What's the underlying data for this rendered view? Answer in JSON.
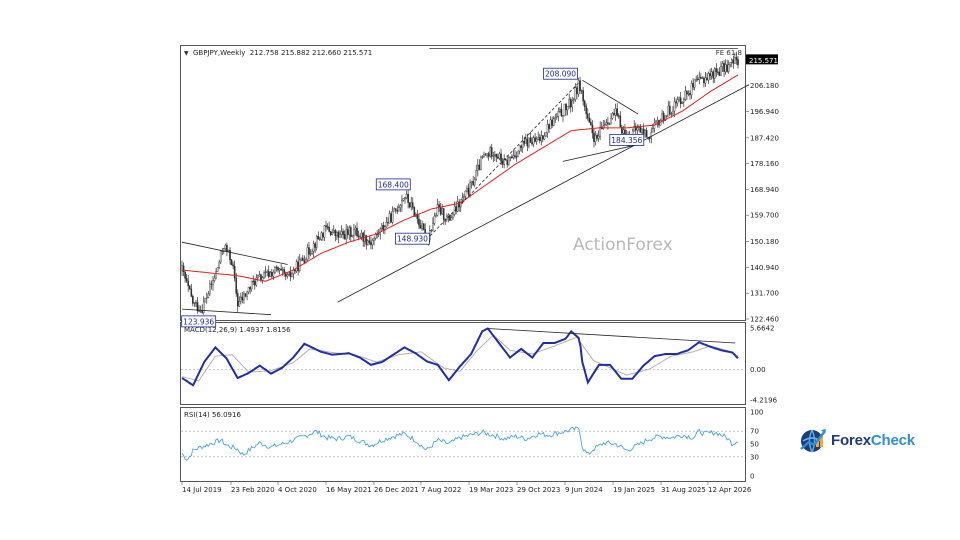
{
  "chart_data": [
    {
      "type": "candlestick",
      "symbol_header": "GBPJPY,Weekly  212.758 215.882 212.660 215.571",
      "current_price_label": "215.571",
      "fe_label": "FE 61.8",
      "watermark": "ActionForex",
      "ylim": [
        122.46,
        220.0
      ],
      "y_ticks": [
        "206.180",
        "196.940",
        "187.420",
        "178.160",
        "168.940",
        "159.700",
        "150.180",
        "140.940",
        "131.700",
        "122.460"
      ],
      "x_ticks": [
        "14 Jul 2019",
        "23 Feb 2020",
        "4 Oct 2020",
        "16 May 2021",
        "26 Dec 2021",
        "7 Aug 2022",
        "19 Mar 2023",
        "29 Oct 2023",
        "9 Jun 2024",
        "19 Jan 2025",
        "31 Aug 2025",
        "12 Apr 2026"
      ],
      "annotations": [
        {
          "label": "123.936",
          "t": 0.03,
          "price": 123.94
        },
        {
          "label": "168.400",
          "t": 0.38,
          "price": 168.4
        },
        {
          "label": "148.930",
          "t": 0.445,
          "price": 148.93
        },
        {
          "label": "208.090",
          "t": 0.715,
          "price": 208.09
        },
        {
          "label": "184.356",
          "t": 0.8,
          "price": 184.36
        }
      ],
      "price_path": [
        [
          0.0,
          140
        ],
        [
          0.02,
          128
        ],
        [
          0.035,
          126
        ],
        [
          0.06,
          138
        ],
        [
          0.075,
          149
        ],
        [
          0.09,
          143
        ],
        [
          0.1,
          128
        ],
        [
          0.11,
          130
        ],
        [
          0.13,
          136
        ],
        [
          0.15,
          138
        ],
        [
          0.17,
          140
        ],
        [
          0.19,
          137
        ],
        [
          0.21,
          142
        ],
        [
          0.24,
          150
        ],
        [
          0.26,
          155
        ],
        [
          0.28,
          152
        ],
        [
          0.31,
          154
        ],
        [
          0.34,
          150
        ],
        [
          0.36,
          155
        ],
        [
          0.38,
          160
        ],
        [
          0.4,
          167
        ],
        [
          0.42,
          160
        ],
        [
          0.44,
          151
        ],
        [
          0.46,
          162
        ],
        [
          0.48,
          158
        ],
        [
          0.5,
          164
        ],
        [
          0.52,
          170
        ],
        [
          0.54,
          180
        ],
        [
          0.56,
          183
        ],
        [
          0.58,
          178
        ],
        [
          0.6,
          182
        ],
        [
          0.62,
          186
        ],
        [
          0.64,
          186
        ],
        [
          0.66,
          192
        ],
        [
          0.68,
          196
        ],
        [
          0.7,
          200
        ],
        [
          0.715,
          207
        ],
        [
          0.73,
          193
        ],
        [
          0.745,
          186
        ],
        [
          0.76,
          193
        ],
        [
          0.78,
          196
        ],
        [
          0.8,
          187
        ],
        [
          0.82,
          191
        ],
        [
          0.84,
          188
        ],
        [
          0.86,
          194
        ],
        [
          0.88,
          198
        ],
        [
          0.9,
          202
        ],
        [
          0.92,
          206
        ],
        [
          0.94,
          209
        ],
        [
          0.96,
          211
        ],
        [
          0.98,
          213
        ],
        [
          1.0,
          215.5
        ]
      ],
      "sma_path": [
        [
          0.0,
          140
        ],
        [
          0.05,
          139
        ],
        [
          0.1,
          138
        ],
        [
          0.15,
          136
        ],
        [
          0.2,
          140
        ],
        [
          0.25,
          146
        ],
        [
          0.3,
          150
        ],
        [
          0.35,
          153
        ],
        [
          0.4,
          158
        ],
        [
          0.45,
          162
        ],
        [
          0.5,
          164
        ],
        [
          0.55,
          171
        ],
        [
          0.6,
          178
        ],
        [
          0.65,
          184
        ],
        [
          0.7,
          190
        ],
        [
          0.75,
          191
        ],
        [
          0.8,
          191
        ],
        [
          0.85,
          192
        ],
        [
          0.9,
          197
        ],
        [
          0.95,
          204
        ],
        [
          1.0,
          210
        ]
      ],
      "trendlines": [
        {
          "from": [
            0.28,
            128.5
          ],
          "to": [
            1.02,
            206.5
          ]
        },
        {
          "from": [
            0.0,
            150
          ],
          "to": [
            0.19,
            142
          ]
        },
        {
          "from": [
            0.0,
            126
          ],
          "to": [
            0.16,
            124
          ]
        },
        {
          "from": [
            0.72,
            208.09
          ],
          "to": [
            0.82,
            196
          ]
        },
        {
          "from": [
            0.685,
            179
          ],
          "to": [
            0.82,
            185
          ]
        },
        {
          "from": [
            0.44,
            151
          ],
          "to": [
            0.715,
            207.5
          ]
        },
        {
          "from": [
            0.445,
            219.5
          ],
          "to": [
            1.0,
            219.5
          ]
        }
      ]
    },
    {
      "type": "line",
      "label": "MACD(12,26,9) 1.4937 1.8156",
      "ylim": [
        -4.2196,
        5.6642
      ],
      "y_ticks": [
        "5.6642",
        "0.00",
        "-4.2196"
      ],
      "macd_path": [
        [
          0.0,
          -1.2
        ],
        [
          0.02,
          -2.2
        ],
        [
          0.04,
          1.0
        ],
        [
          0.06,
          3.0
        ],
        [
          0.08,
          1.5
        ],
        [
          0.1,
          -1.2
        ],
        [
          0.12,
          -0.5
        ],
        [
          0.14,
          0.5
        ],
        [
          0.16,
          -0.6
        ],
        [
          0.18,
          0.2
        ],
        [
          0.2,
          1.6
        ],
        [
          0.22,
          3.5
        ],
        [
          0.25,
          2.4
        ],
        [
          0.27,
          2.0
        ],
        [
          0.3,
          2.2
        ],
        [
          0.32,
          1.6
        ],
        [
          0.34,
          0.6
        ],
        [
          0.36,
          1.0
        ],
        [
          0.38,
          2.0
        ],
        [
          0.4,
          3.0
        ],
        [
          0.42,
          2.2
        ],
        [
          0.44,
          1.1
        ],
        [
          0.46,
          0.6
        ],
        [
          0.48,
          -1.5
        ],
        [
          0.5,
          0.4
        ],
        [
          0.52,
          2.1
        ],
        [
          0.54,
          5.2
        ],
        [
          0.55,
          5.6
        ],
        [
          0.57,
          3.6
        ],
        [
          0.59,
          1.6
        ],
        [
          0.61,
          2.8
        ],
        [
          0.63,
          1.6
        ],
        [
          0.65,
          3.6
        ],
        [
          0.67,
          3.6
        ],
        [
          0.69,
          4.2
        ],
        [
          0.7,
          5.2
        ],
        [
          0.715,
          4.2
        ],
        [
          0.72,
          1.0
        ],
        [
          0.73,
          -1.8
        ],
        [
          0.75,
          0.6
        ],
        [
          0.77,
          0.6
        ],
        [
          0.79,
          -1.3
        ],
        [
          0.81,
          -1.3
        ],
        [
          0.83,
          0.5
        ],
        [
          0.85,
          1.8
        ],
        [
          0.87,
          2.1
        ],
        [
          0.89,
          2.1
        ],
        [
          0.91,
          2.6
        ],
        [
          0.93,
          3.7
        ],
        [
          0.95,
          3.1
        ],
        [
          0.97,
          2.6
        ],
        [
          0.99,
          2.3
        ],
        [
          1.0,
          1.5
        ]
      ],
      "signal_path": [
        [
          0.0,
          -1.0
        ],
        [
          0.03,
          -1.6
        ],
        [
          0.06,
          1.8
        ],
        [
          0.09,
          2.0
        ],
        [
          0.12,
          -0.4
        ],
        [
          0.16,
          -0.2
        ],
        [
          0.2,
          0.9
        ],
        [
          0.23,
          2.8
        ],
        [
          0.27,
          2.3
        ],
        [
          0.31,
          2.0
        ],
        [
          0.35,
          1.0
        ],
        [
          0.39,
          2.0
        ],
        [
          0.43,
          2.4
        ],
        [
          0.47,
          0.2
        ],
        [
          0.5,
          -0.3
        ],
        [
          0.53,
          2.5
        ],
        [
          0.56,
          4.7
        ],
        [
          0.59,
          2.6
        ],
        [
          0.63,
          2.1
        ],
        [
          0.67,
          3.2
        ],
        [
          0.71,
          4.4
        ],
        [
          0.74,
          1.2
        ],
        [
          0.77,
          0.2
        ],
        [
          0.8,
          -0.8
        ],
        [
          0.84,
          0.0
        ],
        [
          0.88,
          1.8
        ],
        [
          0.92,
          2.4
        ],
        [
          0.95,
          3.2
        ],
        [
          0.98,
          2.6
        ],
        [
          1.0,
          1.8
        ]
      ],
      "trendlines": [
        {
          "from": [
            0.55,
            5.6
          ],
          "to": [
            0.995,
            3.6
          ]
        }
      ]
    },
    {
      "type": "line",
      "label": "RSI(14) 56.0916",
      "ylim": [
        0,
        100
      ],
      "y_ticks": [
        "100",
        "70",
        "50",
        "30",
        "0"
      ],
      "levels": [
        70,
        30
      ],
      "rsi_path": [
        [
          0.0,
          35
        ],
        [
          0.01,
          25
        ],
        [
          0.02,
          40
        ],
        [
          0.03,
          44
        ],
        [
          0.05,
          50
        ],
        [
          0.07,
          56
        ],
        [
          0.08,
          48
        ],
        [
          0.1,
          42
        ],
        [
          0.11,
          33
        ],
        [
          0.12,
          40
        ],
        [
          0.14,
          52
        ],
        [
          0.16,
          45
        ],
        [
          0.18,
          50
        ],
        [
          0.2,
          56
        ],
        [
          0.22,
          62
        ],
        [
          0.24,
          70
        ],
        [
          0.26,
          60
        ],
        [
          0.28,
          58
        ],
        [
          0.3,
          62
        ],
        [
          0.32,
          55
        ],
        [
          0.34,
          48
        ],
        [
          0.36,
          56
        ],
        [
          0.38,
          62
        ],
        [
          0.4,
          66
        ],
        [
          0.42,
          56
        ],
        [
          0.44,
          40
        ],
        [
          0.46,
          56
        ],
        [
          0.48,
          50
        ],
        [
          0.5,
          60
        ],
        [
          0.52,
          64
        ],
        [
          0.54,
          68
        ],
        [
          0.56,
          64
        ],
        [
          0.58,
          58
        ],
        [
          0.6,
          62
        ],
        [
          0.62,
          58
        ],
        [
          0.64,
          66
        ],
        [
          0.66,
          64
        ],
        [
          0.68,
          68
        ],
        [
          0.7,
          72
        ],
        [
          0.715,
          74
        ],
        [
          0.72,
          45
        ],
        [
          0.73,
          33
        ],
        [
          0.74,
          42
        ],
        [
          0.76,
          52
        ],
        [
          0.78,
          50
        ],
        [
          0.8,
          40
        ],
        [
          0.82,
          48
        ],
        [
          0.84,
          58
        ],
        [
          0.86,
          62
        ],
        [
          0.88,
          60
        ],
        [
          0.9,
          64
        ],
        [
          0.92,
          60
        ],
        [
          0.93,
          70
        ],
        [
          0.94,
          66
        ],
        [
          0.96,
          68
        ],
        [
          0.98,
          60
        ],
        [
          0.99,
          50
        ],
        [
          1.0,
          56
        ]
      ]
    }
  ],
  "brand": {
    "name_part1": "Forex",
    "name_part2": "Check",
    "logo_icon": "globe-chart-icon"
  },
  "colors": {
    "price": "#2d2d2d",
    "sma": "#e02020",
    "macd": "#1f2ea8",
    "signal": "#aaaaaa",
    "rsi": "#4aa3df",
    "label": "#1c2a8c",
    "brand": "#1d3c78"
  }
}
